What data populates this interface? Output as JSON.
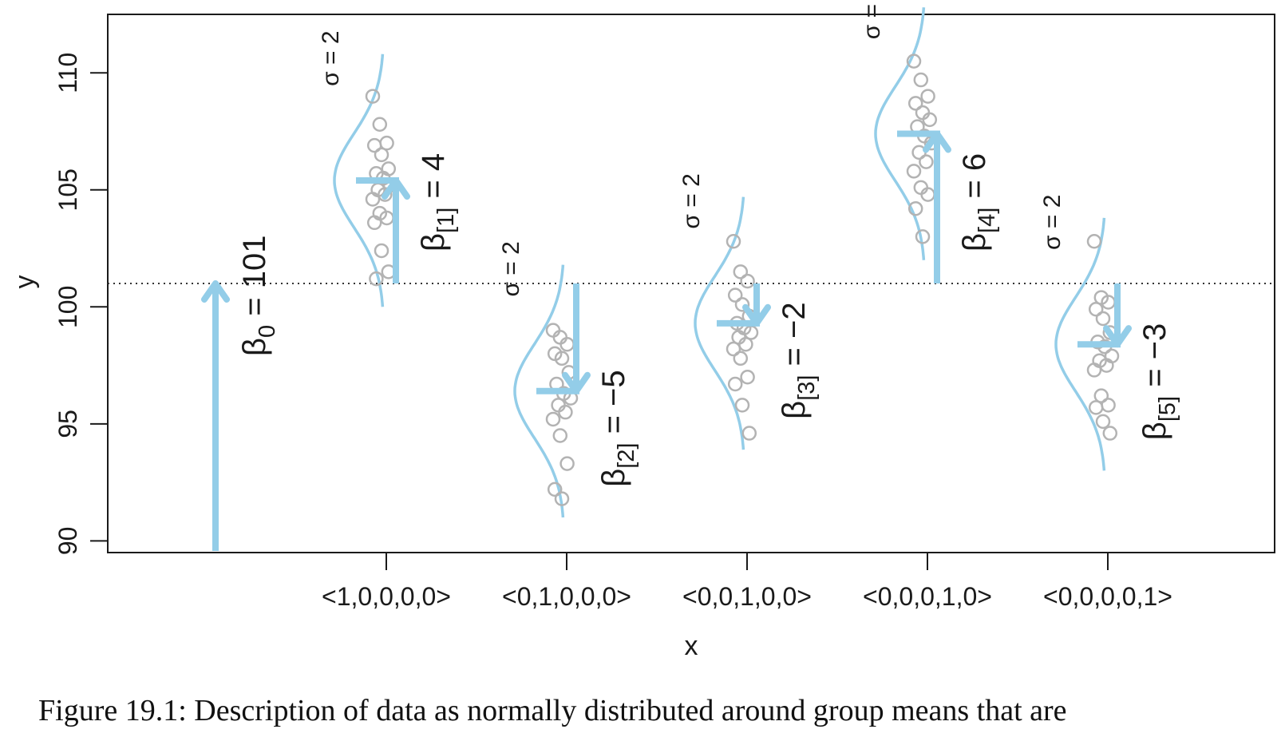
{
  "chart_data": {
    "type": "scatter",
    "xlabel": "x",
    "ylabel": "y",
    "ylim": [
      89.5,
      112.5
    ],
    "yticks": [
      90,
      95,
      100,
      105,
      110
    ],
    "categories": [
      "<1,0,0,0,0>",
      "<0,1,0,0,0>",
      "<0,0,1,0,0>",
      "<0,0,0,1,0>",
      "<0,0,0,0,1>"
    ],
    "baseline": {
      "value": 101,
      "label": "β0 = 101",
      "sym": "β",
      "sub": "0",
      "eq": " = ",
      "val": "101"
    },
    "sigma_label": "σ = 2",
    "sigma_value": 2,
    "colors": {
      "accent": "#93cde8",
      "points": "#b3b3b3",
      "axis": "#1a1a1a"
    },
    "groups": [
      {
        "category": "<1,0,0,0,0>",
        "mean": 105.4,
        "deviation": 4,
        "label": "β[1] = 4",
        "sub": "[1]",
        "val": "4",
        "points": [
          109,
          107.8,
          107,
          106.9,
          106.5,
          105.9,
          105.7,
          105.5,
          105.2,
          105,
          104.8,
          104.6,
          104,
          103.8,
          103.6,
          102.4,
          101.5,
          101.2
        ]
      },
      {
        "category": "<0,1,0,0,0>",
        "mean": 96.4,
        "deviation": -5,
        "label": "β[2] = −5",
        "sub": "[2]",
        "val": "−5",
        "points": [
          99,
          98.7,
          98.4,
          98.0,
          97.8,
          97.2,
          96.7,
          96.3,
          96.1,
          95.8,
          95.5,
          95.2,
          94.5,
          93.3,
          92.2,
          91.8
        ]
      },
      {
        "category": "<0,0,1,0,0>",
        "mean": 99.3,
        "deviation": -2,
        "label": "β[3] = −2",
        "sub": "[3]",
        "val": "−2",
        "points": [
          102.8,
          101.5,
          101.1,
          100.5,
          100.1,
          99.6,
          99.3,
          99.1,
          98.9,
          98.7,
          98.4,
          98.2,
          97.8,
          97.0,
          96.7,
          95.8,
          94.6
        ]
      },
      {
        "category": "<0,0,0,1,0>",
        "mean": 107.4,
        "deviation": 6,
        "label": "β[4] = 6",
        "sub": "[4]",
        "val": "6",
        "points": [
          110.5,
          109.7,
          109.0,
          108.7,
          108.3,
          108.0,
          107.7,
          107.3,
          107.0,
          106.6,
          106.2,
          105.8,
          105.1,
          104.8,
          104.2,
          103.0
        ]
      },
      {
        "category": "<0,0,0,0,1>",
        "mean": 98.4,
        "deviation": -3,
        "label": "β[5] = −3",
        "sub": "[5]",
        "val": "−3",
        "points": [
          102.8,
          100.4,
          100.2,
          99.9,
          99.5,
          98.9,
          98.5,
          98.3,
          97.9,
          97.7,
          97.5,
          97.3,
          96.2,
          95.8,
          95.7,
          95.1,
          94.6
        ]
      }
    ]
  },
  "caption": "Figure 19.1: Description of data as normally distributed around group means that are"
}
